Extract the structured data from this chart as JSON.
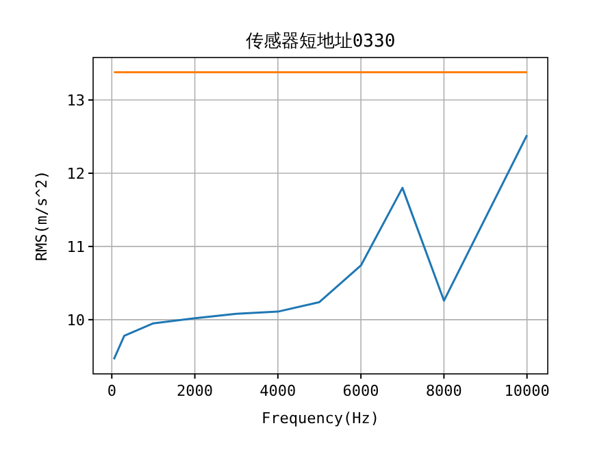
{
  "chart_data": {
    "type": "line",
    "title": "传感器短地址0330",
    "xlabel": "Frequency(Hz)",
    "ylabel": "RMS(m/s^2)",
    "xlim": [
      -450,
      10500
    ],
    "ylim": [
      9.26,
      13.58
    ],
    "xticks": [
      0,
      2000,
      4000,
      6000,
      8000,
      10000
    ],
    "yticks": [
      10,
      11,
      12,
      13
    ],
    "grid": true,
    "series": [
      {
        "color": "#1f77b4",
        "x": [
          50,
          300,
          1000,
          2000,
          3000,
          4000,
          5000,
          6000,
          7000,
          8000,
          10000
        ],
        "values": [
          9.46,
          9.78,
          9.95,
          10.02,
          10.08,
          10.11,
          10.24,
          10.74,
          11.8,
          10.26,
          12.52
        ]
      },
      {
        "color": "#ff7f0e",
        "x": [
          50,
          10000
        ],
        "values": [
          13.38,
          13.38
        ]
      }
    ]
  }
}
